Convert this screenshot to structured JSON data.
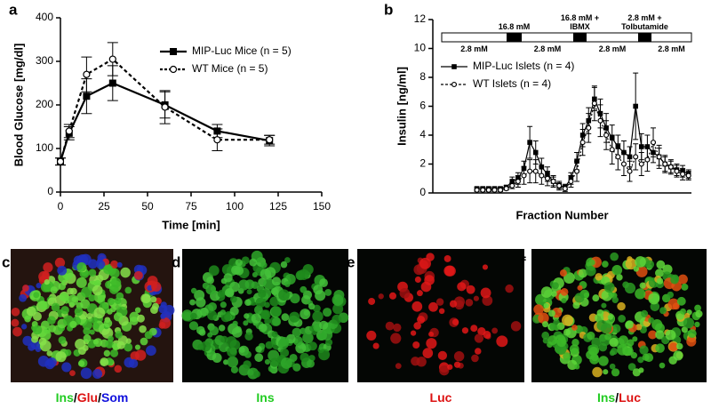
{
  "chart_data": [
    {
      "type": "line",
      "label": "a",
      "xlabel": "Time [min]",
      "ylabel": "Blood Glucose [mg/dl]",
      "x": [
        0,
        5,
        15,
        30,
        60,
        90,
        120
      ],
      "series": [
        {
          "name": "MIP-Luc Mice (n = 5)",
          "color": "#000000",
          "marker": "square",
          "dashed": false,
          "values": [
            70,
            135,
            220,
            250,
            200,
            140,
            118
          ],
          "errors": [
            8,
            15,
            40,
            40,
            30,
            15,
            12
          ]
        },
        {
          "name": "WT Mice (n = 5)",
          "color": "#000000",
          "marker": "circle",
          "dashed": true,
          "values": [
            70,
            140,
            270,
            305,
            195,
            120,
            120
          ],
          "errors": [
            8,
            15,
            40,
            38,
            38,
            25,
            10
          ]
        }
      ],
      "xlim": [
        0,
        150
      ],
      "xticks": [
        0,
        25,
        50,
        75,
        100,
        125,
        150
      ],
      "ylim": [
        0,
        400
      ],
      "yticks": [
        0,
        100,
        200,
        300,
        400
      ]
    },
    {
      "type": "line",
      "label": "b",
      "xlabel": "Fraction Number",
      "ylabel": "Insulin [ng/ml]",
      "protocol": [
        "2.8 mM",
        "16.8 mM",
        "2.8 mM",
        "16.8 mM + IBMX",
        "2.8 mM",
        "2.8 mM + Tolbutamide",
        "2.8 mM"
      ],
      "categories": [
        null,
        null,
        null,
        null,
        null,
        null,
        null,
        null,
        null,
        null,
        null,
        null,
        null,
        null,
        null,
        null,
        null,
        null,
        null,
        null,
        null,
        null,
        null,
        null,
        null,
        null,
        null,
        null,
        null,
        null,
        null,
        null,
        null,
        null,
        null,
        null,
        null,
        null,
        null,
        null,
        null,
        null,
        null,
        null
      ],
      "series": [
        {
          "name": "MIP-Luc Islets (n = 4)",
          "color": "#000000",
          "marker": "square",
          "dashed": false,
          "values": [
            null,
            null,
            null,
            null,
            null,
            null,
            null,
            0.3,
            0.3,
            0.3,
            0.3,
            0.3,
            0.4,
            0.8,
            1.0,
            1.7,
            3.5,
            2.8,
            1.8,
            1.3,
            0.8,
            0.5,
            0.4,
            1.0,
            2.2,
            4.0,
            5.0,
            6.5,
            5.5,
            4.5,
            3.8,
            3.2,
            2.8,
            2.5,
            6.0,
            3.2,
            3.2,
            2.8,
            2.5,
            2.0,
            1.8,
            1.6,
            1.5,
            1.3
          ],
          "errors": [
            null,
            null,
            null,
            null,
            null,
            null,
            null,
            0.1,
            0.1,
            0.1,
            0.1,
            0.1,
            0.1,
            0.3,
            0.4,
            0.5,
            1.1,
            0.8,
            0.6,
            0.5,
            0.3,
            0.2,
            0.2,
            0.4,
            0.6,
            0.8,
            0.9,
            0.8,
            1.0,
            1.0,
            0.9,
            0.8,
            0.8,
            0.7,
            2.3,
            0.9,
            0.8,
            0.7,
            0.6,
            0.5,
            0.4,
            0.4,
            0.4,
            0.3
          ]
        },
        {
          "name": "WT Islets (n = 4)",
          "color": "#000000",
          "marker": "circle",
          "dashed": true,
          "values": [
            null,
            null,
            null,
            null,
            null,
            null,
            null,
            0.2,
            0.2,
            0.2,
            0.2,
            0.2,
            0.3,
            0.5,
            0.8,
            1.2,
            1.5,
            1.5,
            1.2,
            1.0,
            0.8,
            0.5,
            0.3,
            0.8,
            1.5,
            3.5,
            4.5,
            6.2,
            5.0,
            4.0,
            3.0,
            2.5,
            2.0,
            1.5,
            2.5,
            2.0,
            2.3,
            3.5,
            2.5,
            2.0,
            1.8,
            1.5,
            1.3,
            1.2
          ],
          "errors": [
            null,
            null,
            null,
            null,
            null,
            null,
            null,
            0.1,
            0.1,
            0.1,
            0.1,
            0.1,
            0.1,
            0.2,
            0.4,
            0.6,
            0.8,
            0.8,
            0.6,
            0.5,
            0.4,
            0.3,
            0.2,
            0.4,
            0.7,
            0.9,
            1.0,
            1.2,
            1.1,
            1.0,
            1.0,
            0.9,
            0.8,
            0.7,
            0.9,
            0.8,
            0.8,
            1.0,
            0.8,
            0.6,
            0.5,
            0.4,
            0.4,
            0.3
          ]
        }
      ],
      "ylim": [
        0,
        12
      ],
      "yticks": [
        0,
        2,
        4,
        6,
        8,
        10,
        12
      ]
    }
  ],
  "images": [
    {
      "letter": "c",
      "caption": [
        "Ins",
        "/",
        "Glu",
        "/",
        "Som"
      ],
      "caption_colors": [
        "#22cc22",
        "#000000",
        "#dd1111",
        "#000000",
        "#1111dd"
      ]
    },
    {
      "letter": "d",
      "caption": [
        "Ins"
      ],
      "caption_colors": [
        "#22cc22"
      ]
    },
    {
      "letter": "e",
      "caption": [
        "Luc"
      ],
      "caption_colors": [
        "#dd1111"
      ]
    },
    {
      "letter": "f",
      "caption": [
        "Ins",
        "/",
        "Luc"
      ],
      "caption_colors": [
        "#22cc22",
        "#000000",
        "#dd1111"
      ]
    }
  ]
}
